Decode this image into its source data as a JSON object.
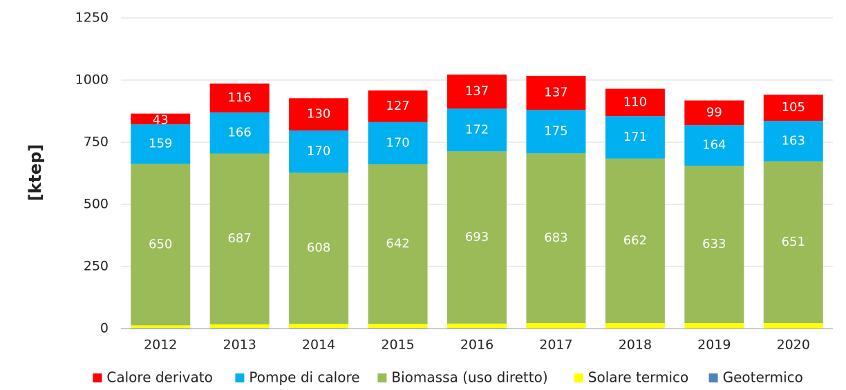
{
  "chart_data": {
    "type": "stacked_bar",
    "y_label": "[ktep]",
    "categories": [
      "2012",
      "2013",
      "2014",
      "2015",
      "2016",
      "2017",
      "2018",
      "2019",
      "2020"
    ],
    "series": [
      {
        "name": "Calore derivato",
        "color": "#ff0000",
        "values": [
          43,
          116,
          130,
          127,
          137,
          137,
          110,
          99,
          105
        ]
      },
      {
        "name": "Pompe di calore",
        "color": "#00b0f0",
        "values": [
          159,
          166,
          170,
          170,
          172,
          175,
          171,
          164,
          163
        ]
      },
      {
        "name": "Biomassa (uso diretto)",
        "color": "#9bbb59",
        "values": [
          650,
          687,
          608,
          642,
          693,
          683,
          662,
          633,
          651
        ]
      },
      {
        "name": "Solare termico",
        "color": "#ffff00",
        "values": [
          11,
          15,
          17,
          17,
          18,
          21,
          21,
          21,
          21
        ]
      },
      {
        "name": "Geotermico",
        "color": "#4f81bd",
        "values": [
          2,
          2,
          2,
          2,
          2,
          1,
          1,
          1,
          1
        ]
      }
    ],
    "ylim": [
      0,
      1250
    ],
    "yticks": [
      0,
      250,
      500,
      750,
      1000,
      1250
    ],
    "grid": true
  }
}
